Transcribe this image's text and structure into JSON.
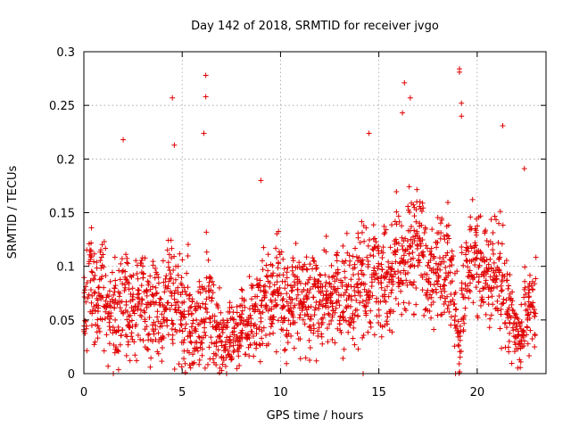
{
  "chart_data": {
    "type": "scatter",
    "title": "Day 142 of 2018, SRMTID for receiver jvgo",
    "xlabel": "GPS time / hours",
    "ylabel": "SRMTID / TECUs",
    "xlim": [
      0,
      23.5
    ],
    "ylim": [
      0,
      0.3
    ],
    "x_ticks": [
      0,
      5,
      10,
      15,
      20
    ],
    "y_ticks": [
      0,
      0.05,
      0.1,
      0.15,
      0.2,
      0.25,
      0.3
    ],
    "x_tick_labels": [
      "0",
      "5",
      "10",
      "15",
      "20"
    ],
    "y_tick_labels": [
      "0",
      "0.05",
      "0.1",
      "0.15",
      "0.2",
      "0.25",
      "0.3"
    ],
    "grid": true,
    "legend": "none",
    "marker": "plus",
    "color": "#e00000",
    "series": [
      {
        "x": [
          0.0,
          0.2,
          0.4,
          0.6,
          0.8,
          1.0,
          1.2,
          1.4,
          1.6,
          1.8,
          2.0,
          2.2,
          2.4,
          2.6,
          2.8,
          3.0,
          3.2,
          3.4,
          3.6,
          3.8,
          4.0,
          4.2,
          4.4,
          4.6,
          4.8,
          5.0,
          5.2,
          5.4,
          5.6,
          5.8,
          6.0,
          6.2,
          6.4,
          6.6,
          6.8,
          7.0,
          7.2,
          7.4,
          7.6,
          7.8,
          8.0,
          8.2,
          8.4,
          8.6,
          8.8,
          9.0,
          9.2,
          9.4,
          9.6,
          9.8,
          10.0,
          10.2,
          10.4,
          10.6,
          10.8,
          11.0,
          11.2,
          11.4,
          11.6,
          11.8,
          12.0,
          12.2,
          12.4,
          12.6,
          12.8,
          13.0,
          13.2,
          13.4,
          13.6,
          13.8,
          14.0,
          14.2,
          14.4,
          14.6,
          14.8,
          15.0,
          15.2,
          15.4,
          15.6,
          15.8,
          16.0,
          16.2,
          16.4,
          16.6,
          16.8,
          17.0,
          17.2,
          17.4,
          17.6,
          17.8,
          18.0,
          18.2,
          18.4,
          18.6,
          18.8,
          19.0,
          19.2,
          19.4,
          19.6,
          19.8,
          20.0,
          20.2,
          20.4,
          20.6,
          20.8,
          21.0,
          21.2,
          21.4,
          21.6,
          21.8,
          22.0,
          22.2,
          22.4,
          22.6,
          22.8
        ],
        "y_mid": [
          0.06,
          0.1,
          0.08,
          0.07,
          0.09,
          0.07,
          0.06,
          0.06,
          0.05,
          0.06,
          0.07,
          0.06,
          0.06,
          0.07,
          0.08,
          0.07,
          0.06,
          0.07,
          0.06,
          0.05,
          0.06,
          0.08,
          0.07,
          0.06,
          0.06,
          0.05,
          0.06,
          0.04,
          0.05,
          0.05,
          0.05,
          0.07,
          0.05,
          0.04,
          0.04,
          0.03,
          0.03,
          0.04,
          0.04,
          0.04,
          0.05,
          0.04,
          0.05,
          0.05,
          0.06,
          0.07,
          0.07,
          0.06,
          0.07,
          0.08,
          0.07,
          0.06,
          0.07,
          0.08,
          0.07,
          0.06,
          0.07,
          0.06,
          0.07,
          0.06,
          0.06,
          0.07,
          0.07,
          0.06,
          0.08,
          0.07,
          0.08,
          0.07,
          0.07,
          0.08,
          0.08,
          0.08,
          0.08,
          0.09,
          0.09,
          0.08,
          0.09,
          0.09,
          0.09,
          0.1,
          0.1,
          0.1,
          0.11,
          0.12,
          0.13,
          0.13,
          0.1,
          0.09,
          0.09,
          0.1,
          0.1,
          0.09,
          0.1,
          0.09,
          0.06,
          0.03,
          0.07,
          0.09,
          0.1,
          0.11,
          0.11,
          0.09,
          0.09,
          0.09,
          0.1,
          0.09,
          0.08,
          0.06,
          0.05,
          0.04,
          0.03,
          0.04,
          0.06,
          0.06,
          0.06
        ],
        "spread": [
          0.045,
          0.045,
          0.045,
          0.045,
          0.045,
          0.045,
          0.045,
          0.045,
          0.045,
          0.045,
          0.05,
          0.045,
          0.045,
          0.045,
          0.045,
          0.045,
          0.045,
          0.045,
          0.045,
          0.045,
          0.045,
          0.045,
          0.045,
          0.045,
          0.05,
          0.045,
          0.045,
          0.04,
          0.045,
          0.045,
          0.05,
          0.05,
          0.04,
          0.035,
          0.035,
          0.03,
          0.03,
          0.03,
          0.03,
          0.03,
          0.03,
          0.03,
          0.035,
          0.035,
          0.04,
          0.045,
          0.045,
          0.045,
          0.045,
          0.045,
          0.045,
          0.04,
          0.04,
          0.045,
          0.04,
          0.04,
          0.04,
          0.04,
          0.04,
          0.04,
          0.04,
          0.04,
          0.04,
          0.04,
          0.045,
          0.04,
          0.045,
          0.04,
          0.04,
          0.045,
          0.05,
          0.05,
          0.05,
          0.05,
          0.05,
          0.045,
          0.045,
          0.045,
          0.045,
          0.05,
          0.05,
          0.05,
          0.055,
          0.055,
          0.05,
          0.05,
          0.05,
          0.045,
          0.045,
          0.05,
          0.05,
          0.045,
          0.045,
          0.045,
          0.04,
          0.03,
          0.045,
          0.045,
          0.05,
          0.05,
          0.05,
          0.045,
          0.045,
          0.045,
          0.045,
          0.045,
          0.045,
          0.04,
          0.035,
          0.03,
          0.03,
          0.03,
          0.04,
          0.04,
          0.04
        ]
      }
    ],
    "outliers": [
      {
        "x": 4.5,
        "y": 0.257
      },
      {
        "x": 6.2,
        "y": 0.278
      },
      {
        "x": 6.2,
        "y": 0.258
      },
      {
        "x": 6.1,
        "y": 0.224
      },
      {
        "x": 4.6,
        "y": 0.213
      },
      {
        "x": 2.0,
        "y": 0.218
      },
      {
        "x": 14.5,
        "y": 0.224
      },
      {
        "x": 16.3,
        "y": 0.271
      },
      {
        "x": 16.6,
        "y": 0.257
      },
      {
        "x": 16.2,
        "y": 0.243
      },
      {
        "x": 19.1,
        "y": 0.284
      },
      {
        "x": 19.1,
        "y": 0.281
      },
      {
        "x": 19.2,
        "y": 0.252
      },
      {
        "x": 19.2,
        "y": 0.24
      },
      {
        "x": 21.3,
        "y": 0.231
      },
      {
        "x": 9.0,
        "y": 0.18
      },
      {
        "x": 22.4,
        "y": 0.191
      },
      {
        "x": 14.2,
        "y": 0.0
      },
      {
        "x": 1.5,
        "y": 0.0
      },
      {
        "x": 18.9,
        "y": 0.0
      }
    ]
  }
}
